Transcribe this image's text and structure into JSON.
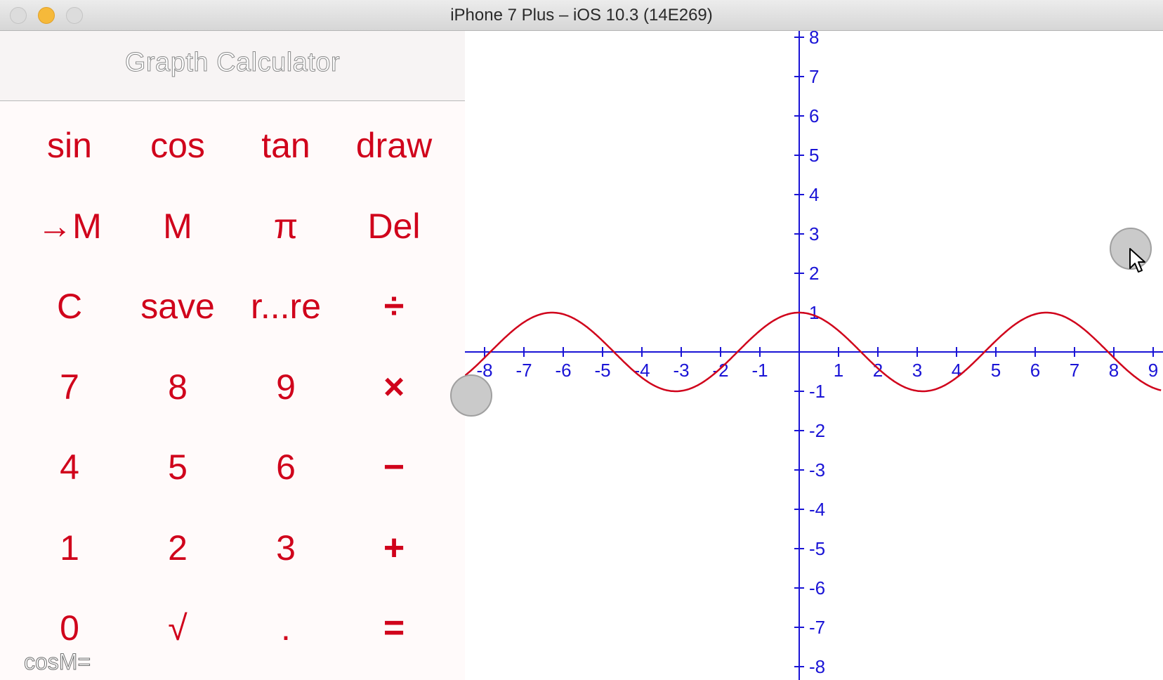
{
  "window": {
    "title": "iPhone 7 Plus – iOS 10.3 (14E269)",
    "controls": [
      "close",
      "minimize",
      "zoom"
    ]
  },
  "app": {
    "nav_title": "Grapth Calculator",
    "accent_color": "#d0021b",
    "axes_color": "#1a14d6",
    "curve_color": "#d0021b",
    "keys": [
      [
        "sin",
        "cos",
        "tan",
        "draw"
      ],
      [
        "→M",
        "M",
        "π",
        "Del"
      ],
      [
        "C",
        "save",
        "r...re",
        "÷"
      ],
      [
        "7",
        "8",
        "9",
        "×"
      ],
      [
        "4",
        "5",
        "6",
        "−"
      ],
      [
        "1",
        "2",
        "3",
        "+"
      ],
      [
        "0",
        "√",
        ".",
        "="
      ]
    ],
    "display": "cosM="
  },
  "graph": {
    "function": "cos(M)",
    "x_ticks": [
      "-8",
      "-7",
      "-6",
      "-5",
      "-4",
      "-3",
      "-2",
      "-1",
      "1",
      "2",
      "3",
      "4",
      "5",
      "6",
      "7",
      "8",
      "9"
    ],
    "y_ticks": [
      "8",
      "7",
      "6",
      "5",
      "4",
      "3",
      "2",
      "1",
      "-1",
      "-2",
      "-3",
      "-4",
      "-5",
      "-6",
      "-7",
      "-8"
    ],
    "x_range": [
      -8.5,
      9.2
    ],
    "y_range": [
      -8.2,
      8.3
    ]
  }
}
